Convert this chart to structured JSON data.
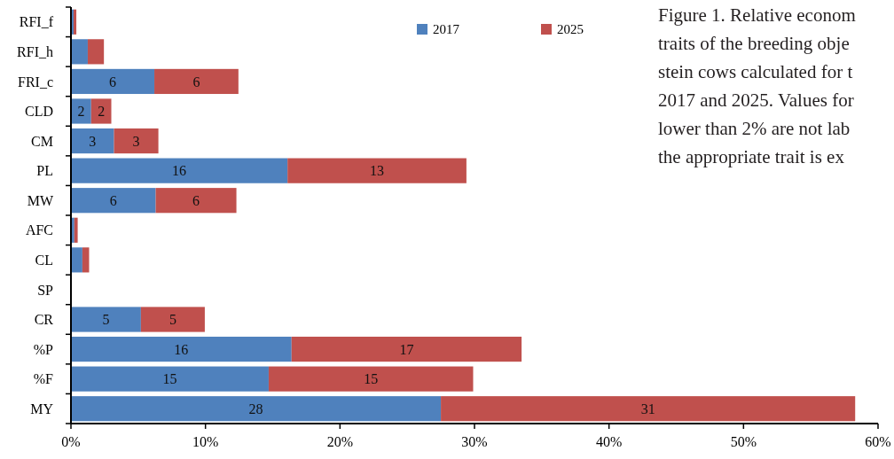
{
  "chart_data": {
    "type": "bar",
    "orientation": "horizontal",
    "stacked": true,
    "categories": [
      "RFI_f",
      "RFI_h",
      "FRI_c",
      "CLD",
      "CM",
      "PL",
      "MW",
      "AFC",
      "CL",
      "SP",
      "CR",
      "%P",
      "%F",
      "MY"
    ],
    "series": [
      {
        "name": "2017",
        "color": "#4f81bd",
        "values": [
          0.2,
          1.25,
          6.2,
          1.5,
          3.2,
          16.1,
          6.3,
          0.25,
          0.85,
          0,
          5.2,
          16.4,
          14.7,
          27.5
        ],
        "value_labels": [
          null,
          null,
          "6",
          "2",
          "3",
          "16",
          "6",
          null,
          null,
          null,
          "5",
          "16",
          "15",
          "28"
        ]
      },
      {
        "name": "2025",
        "color": "#c0504d",
        "values": [
          0.2,
          1.2,
          6.25,
          1.5,
          3.3,
          13.3,
          6.0,
          0.25,
          0.5,
          0,
          4.75,
          17.1,
          15.2,
          30.8
        ],
        "value_labels": [
          null,
          null,
          "6",
          "2",
          "3",
          "13",
          "6",
          null,
          null,
          null,
          "5",
          "17",
          "15",
          "31"
        ]
      }
    ],
    "xlim": [
      0,
      60
    ],
    "xticks": [
      {
        "value": 0,
        "label": "0%"
      },
      {
        "value": 10,
        "label": "10%"
      },
      {
        "value": 20,
        "label": "20%"
      },
      {
        "value": 30,
        "label": "30%"
      },
      {
        "value": 40,
        "label": "40%"
      },
      {
        "value": 50,
        "label": "50%"
      },
      {
        "value": 60,
        "label": "60%"
      }
    ],
    "legend": "top",
    "grid": false,
    "annotations": [
      "Figure 1. Relative econom",
      "traits of the breeding obje",
      "stein cows calculated for t",
      "2017 and 2025. Values for",
      "lower than 2% are not lab",
      "the appropriate trait is ex"
    ]
  }
}
